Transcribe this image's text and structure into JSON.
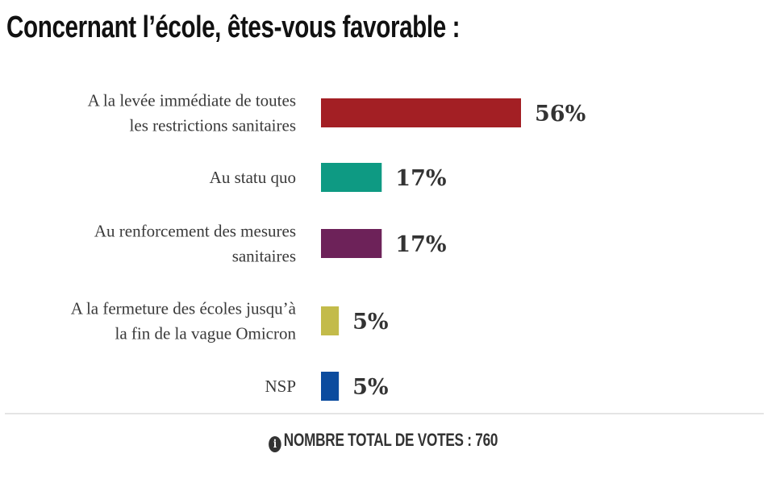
{
  "chart_data": {
    "type": "bar",
    "orientation": "horizontal",
    "title": "Concernant l’école, êtes-vous favorable :",
    "categories": [
      [
        "A la levée immédiate de toutes",
        "les restrictions sanitaires"
      ],
      [
        "Au statu quo"
      ],
      [
        "Au renforcement des mesures",
        "sanitaires"
      ],
      [
        "A la fermeture des écoles jusqu’à",
        "la fin de la vague Omicron"
      ],
      [
        "NSP"
      ]
    ],
    "values": [
      56,
      17,
      17,
      5,
      5
    ],
    "value_labels": [
      "56%",
      "17%",
      "17%",
      "5%",
      "5%"
    ],
    "colors": [
      "#a31f24",
      "#0e9a83",
      "#6d2259",
      "#c3bb4a",
      "#0b4b9e"
    ],
    "unit": "%",
    "xlim": [
      0,
      100
    ],
    "xlabel": "",
    "ylabel": "",
    "grid": false,
    "legend": "none"
  },
  "footer": {
    "icon": "info-icon",
    "text": "NOMBRE TOTAL DE VOTES : 760"
  }
}
